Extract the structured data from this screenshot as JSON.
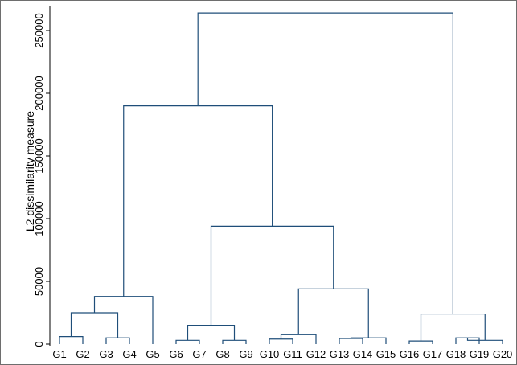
{
  "chart_data": {
    "type": "dendrogram",
    "ylabel": "L2 dissimilarity measure",
    "ylim": [
      0,
      265000
    ],
    "yticks": [
      0,
      50000,
      100000,
      150000,
      200000,
      250000
    ],
    "ytick_labels": [
      "0",
      "50000",
      "100000",
      "150000",
      "200000",
      "250000"
    ],
    "leaves": [
      "G1",
      "G2",
      "G3",
      "G4",
      "G5",
      "G6",
      "G7",
      "G8",
      "G9",
      "G10",
      "G11",
      "G12",
      "G13",
      "G14",
      "G15",
      "G16",
      "G17",
      "G18",
      "G19",
      "G20"
    ],
    "merges": [
      {
        "a": "G1",
        "b": "G2",
        "id": "c1",
        "height": 6000
      },
      {
        "a": "G3",
        "b": "G4",
        "id": "c2",
        "height": 5000
      },
      {
        "a": "c1",
        "b": "c2",
        "id": "c3",
        "height": 25000
      },
      {
        "a": "c3",
        "b": "G5",
        "id": "c4",
        "height": 38000
      },
      {
        "a": "G6",
        "b": "G7",
        "id": "c5",
        "height": 3000
      },
      {
        "a": "G8",
        "b": "G9",
        "id": "c6",
        "height": 3000
      },
      {
        "a": "c5",
        "b": "c6",
        "id": "c7",
        "height": 15000
      },
      {
        "a": "G10",
        "b": "G11",
        "id": "c8",
        "height": 4000
      },
      {
        "a": "c8",
        "b": "G12",
        "id": "c9",
        "height": 7500
      },
      {
        "a": "G13",
        "b": "G14",
        "id": "c10",
        "height": 4500
      },
      {
        "a": "c10",
        "b": "G15",
        "id": "c11",
        "height": 5000
      },
      {
        "a": "c9",
        "b": "c11",
        "id": "c12",
        "height": 44000
      },
      {
        "a": "c7",
        "b": "c12",
        "id": "c13",
        "height": 94000
      },
      {
        "a": "c4",
        "b": "c13",
        "id": "c14",
        "height": 190000
      },
      {
        "a": "G16",
        "b": "G17",
        "id": "c15",
        "height": 2500
      },
      {
        "a": "G18",
        "b": "G19",
        "id": "c16",
        "height": 5000
      },
      {
        "a": "c16",
        "b": "G20",
        "id": "c17",
        "height": 3000
      },
      {
        "a": "c15",
        "b": "c17",
        "id": "c18",
        "height": 24000
      },
      {
        "a": "c14",
        "b": "c18",
        "id": "c19",
        "height": 264000
      }
    ],
    "colors": {
      "links": "#1f4e79",
      "axis": "#000000",
      "frame": "#6e6e6e"
    },
    "grid": false,
    "legend": "none"
  }
}
